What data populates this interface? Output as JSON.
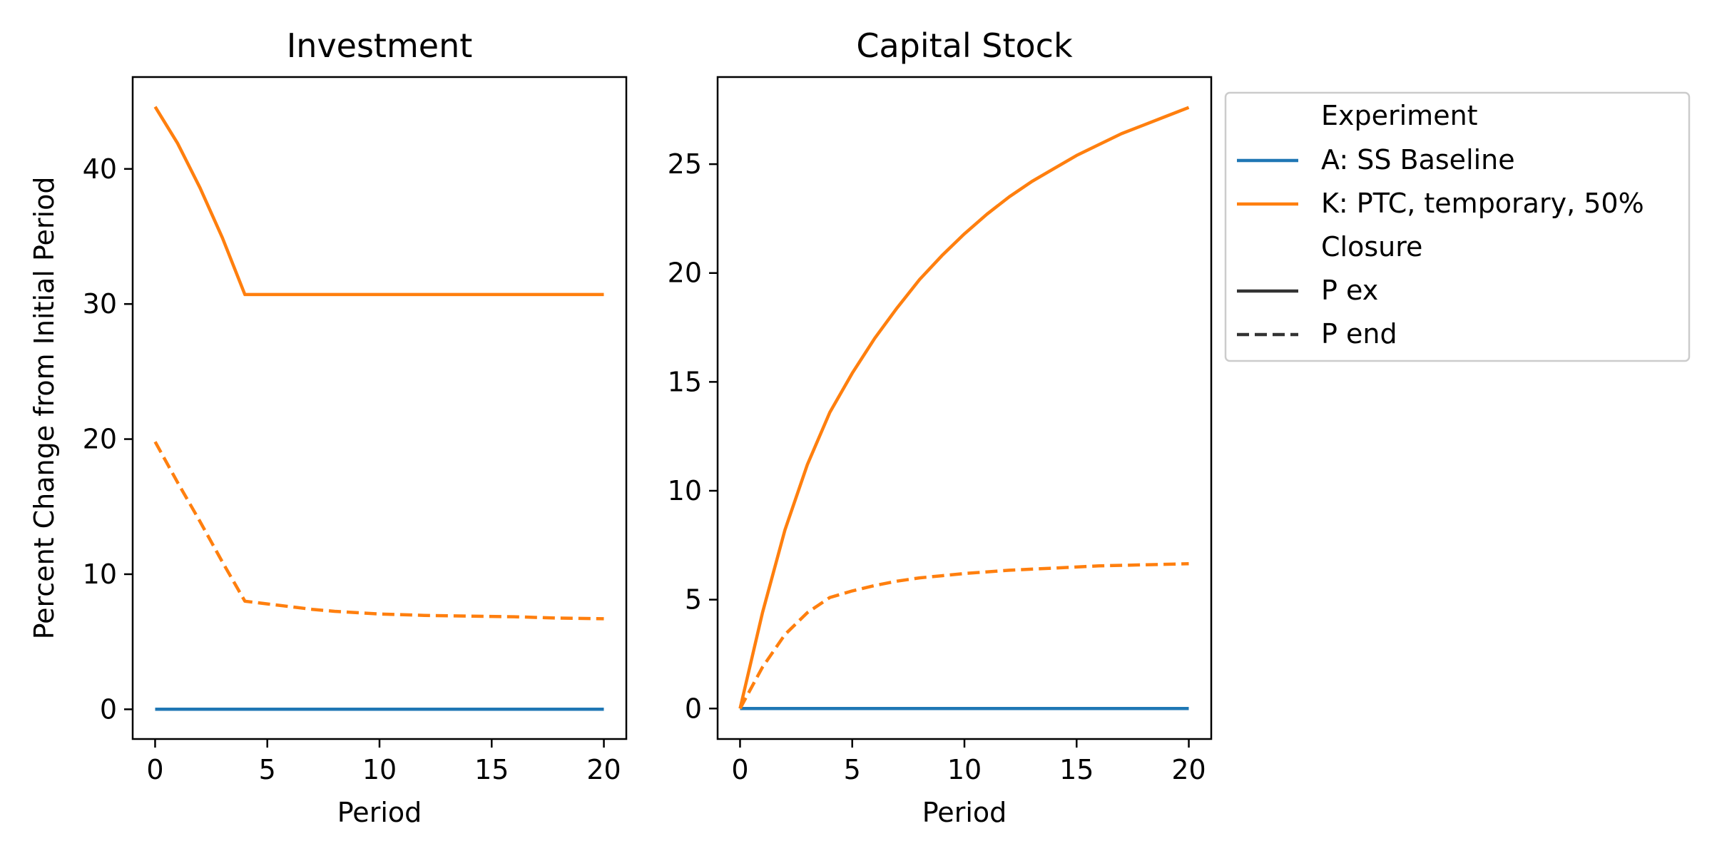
{
  "colors": {
    "A: SS Baseline": "#1f77b4",
    "K: PTC, temporary, 50%": "#ff7f0e",
    "style_line": "#333333"
  },
  "legend": {
    "experiment_heading": "Experiment",
    "experiment_entries": [
      "A: SS Baseline",
      "K: PTC, temporary, 50%"
    ],
    "closure_heading": "Closure",
    "closure_entries": [
      {
        "label": "P ex",
        "style": "solid"
      },
      {
        "label": "P end",
        "style": "dashed"
      }
    ],
    "placement": "outside-right-top"
  },
  "chart_data": [
    {
      "type": "line",
      "title": "Investment",
      "xlabel": "Period",
      "ylabel": "Percent Change from Initial Period",
      "xlim": [
        -1,
        21
      ],
      "ylim": [
        -2.2,
        46.8
      ],
      "xticks": [
        0,
        5,
        10,
        15,
        20
      ],
      "yticks": [
        0,
        10,
        20,
        30,
        40
      ],
      "grid": false,
      "series": [
        {
          "name": "A: SS Baseline",
          "closure": "P ex",
          "style": "solid",
          "x": [
            0,
            5,
            10,
            15,
            20
          ],
          "y": [
            0,
            0,
            0,
            0,
            0
          ]
        },
        {
          "name": "K: PTC, temporary, 50%",
          "closure": "P ex",
          "style": "solid",
          "x": [
            0,
            1,
            2,
            3,
            4,
            5,
            10,
            15,
            20
          ],
          "y": [
            44.6,
            41.9,
            38.6,
            34.9,
            30.7,
            30.7,
            30.7,
            30.7,
            30.7
          ]
        },
        {
          "name": "K: PTC, temporary, 50%",
          "closure": "P end",
          "style": "dashed",
          "x": [
            0,
            1,
            2,
            3,
            4,
            5,
            6,
            7,
            8,
            9,
            10,
            12,
            14,
            16,
            18,
            20
          ],
          "y": [
            19.8,
            16.8,
            13.9,
            10.9,
            8.0,
            7.8,
            7.6,
            7.4,
            7.25,
            7.15,
            7.05,
            6.95,
            6.9,
            6.85,
            6.75,
            6.7
          ]
        }
      ]
    },
    {
      "type": "line",
      "title": "Capital Stock",
      "xlabel": "Period",
      "ylabel": "",
      "xlim": [
        -1,
        21
      ],
      "ylim": [
        -1.4,
        29.0
      ],
      "xticks": [
        0,
        5,
        10,
        15,
        20
      ],
      "yticks": [
        0,
        5,
        10,
        15,
        20,
        25
      ],
      "grid": false,
      "series": [
        {
          "name": "A: SS Baseline",
          "closure": "P ex",
          "style": "solid",
          "x": [
            0,
            5,
            10,
            15,
            20
          ],
          "y": [
            0,
            0,
            0,
            0,
            0
          ]
        },
        {
          "name": "K: PTC, temporary, 50%",
          "closure": "P ex",
          "style": "solid",
          "x": [
            0,
            1,
            2,
            3,
            4,
            5,
            6,
            7,
            8,
            9,
            10,
            11,
            12,
            13,
            14,
            15,
            16,
            17,
            18,
            19,
            20
          ],
          "y": [
            0,
            4.4,
            8.2,
            11.2,
            13.6,
            15.4,
            17.0,
            18.4,
            19.7,
            20.8,
            21.8,
            22.7,
            23.5,
            24.2,
            24.8,
            25.4,
            25.9,
            26.4,
            26.8,
            27.2,
            27.6
          ]
        },
        {
          "name": "K: PTC, temporary, 50%",
          "closure": "P end",
          "style": "dashed",
          "x": [
            0,
            1,
            2,
            3,
            4,
            5,
            6,
            7,
            8,
            9,
            10,
            12,
            14,
            16,
            18,
            20
          ],
          "y": [
            0,
            1.9,
            3.4,
            4.4,
            5.1,
            5.4,
            5.65,
            5.85,
            6.0,
            6.1,
            6.2,
            6.35,
            6.45,
            6.55,
            6.6,
            6.65
          ]
        }
      ]
    }
  ]
}
